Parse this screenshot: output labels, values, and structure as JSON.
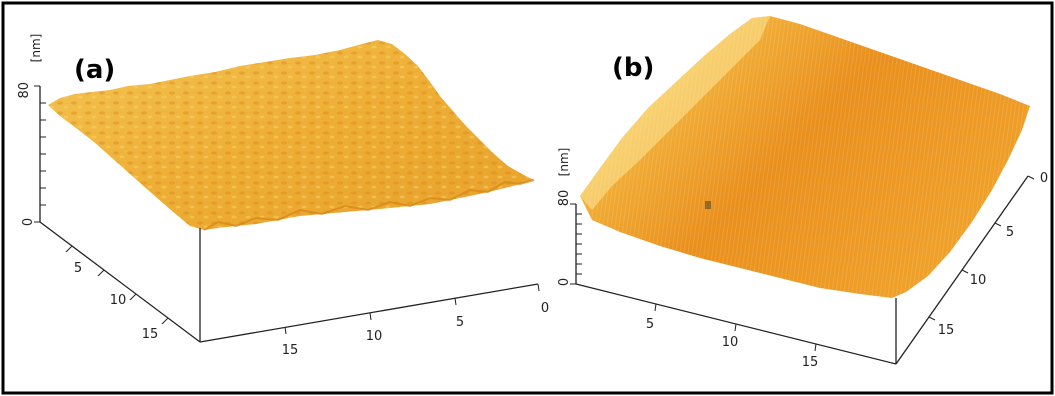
{
  "panels": [
    {
      "label": "(a)",
      "z_ticks": [
        "0",
        "80"
      ],
      "z_unit": "[nm]",
      "left_axis_ticks": [
        "5",
        "10",
        "15"
      ],
      "bottom_axis_ticks": [
        "15",
        "10",
        "5",
        "0"
      ]
    },
    {
      "label": "(b)",
      "z_ticks": [
        "0",
        "80"
      ],
      "z_unit": "[nm]",
      "bottom_axis_ticks": [
        "5",
        "10",
        "15"
      ],
      "right_axis_ticks": [
        "0",
        "5",
        "10",
        "15"
      ]
    }
  ],
  "colors": {
    "surface_light": "#f6e07a",
    "surface_mid": "#f0b030",
    "surface_dark": "#e08a14",
    "frame": "#000000"
  }
}
